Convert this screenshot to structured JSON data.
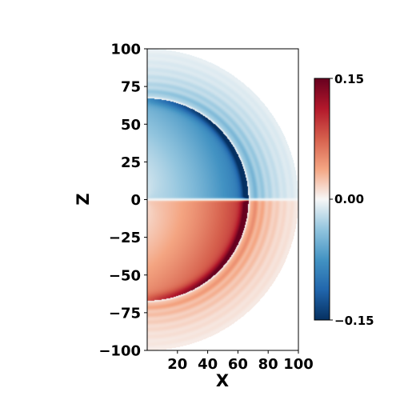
{
  "chart_data": {
    "type": "heatmap",
    "title": "",
    "xlabel": "X",
    "ylabel": "Z",
    "xlim": [
      0,
      100
    ],
    "ylim": [
      -100,
      100
    ],
    "x_ticks": [
      20,
      40,
      60,
      80,
      100
    ],
    "y_ticks": [
      100,
      75,
      50,
      25,
      0,
      -25,
      -50,
      -75,
      -100
    ],
    "colormap": "RdBu_r",
    "colorbar": {
      "min": -0.15,
      "max": 0.15,
      "ticks": [
        0.15,
        0.0,
        -0.15
      ],
      "tick_labels": [
        "0.15",
        "0.00",
        "−0.15"
      ],
      "placement": "right"
    },
    "field": {
      "description_hidden": false,
      "domain_radius": 100,
      "inner_shell_radius": 67,
      "peak_value": 0.15,
      "sign_above_z0": "negative",
      "sign_below_z0": "positive"
    },
    "colors": {
      "max_red": "#67001f",
      "mid": "#f7f7f7",
      "max_blue": "#053061"
    }
  },
  "labels": {
    "x_axis": "X",
    "z_axis": "Z",
    "x_tick_labels": [
      "20",
      "40",
      "60",
      "80",
      "100"
    ],
    "y_tick_labels": [
      "100",
      "75",
      "50",
      "25",
      "0",
      "−25",
      "−50",
      "−75",
      "−100"
    ],
    "cb_top": "0.15",
    "cb_mid": "0.00",
    "cb_bottom": "−0.15"
  }
}
